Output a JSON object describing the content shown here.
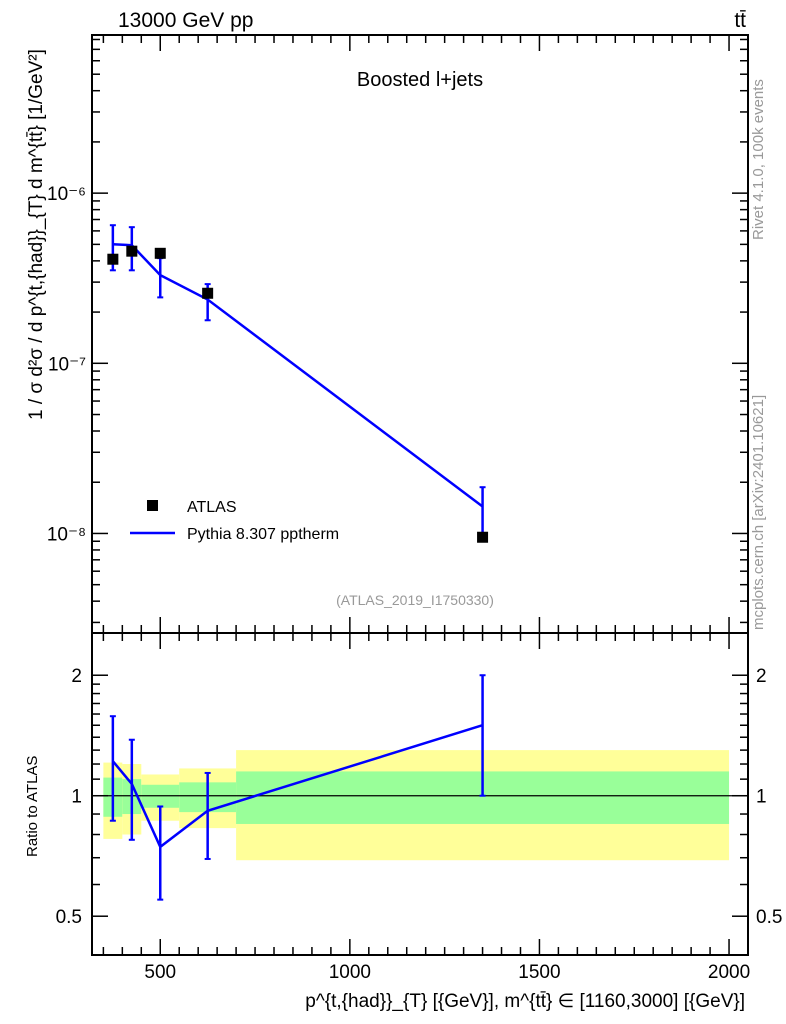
{
  "header": {
    "left": "13000 GeV pp",
    "right": "tt̄"
  },
  "side_labels": {
    "top": "Rivet 4.1.0,  100k events",
    "bottom": "mcplots.cern.ch [arXiv:2401.10621]"
  },
  "chart_data": [
    {
      "type": "scatter",
      "title": "Boosted l+jets",
      "annotation": "(ATLAS_2019_I1750330)",
      "ylabel": "1 / σ d²σ / d p^{t,{had}}_{T} d m^{tt̄} [1/GeV²]",
      "yscale": "log",
      "ylim": [
        8.5e-06,
        2.6e-09
      ],
      "xlim": [
        320,
        2050
      ],
      "yticks": [
        {
          "v": 1e-06,
          "label": "10⁻⁶"
        },
        {
          "v": 1e-07,
          "label": "10⁻⁷"
        },
        {
          "v": 1e-08,
          "label": "10⁻⁸"
        }
      ],
      "legend": {
        "placement": "bottom-left",
        "entries": [
          "ATLAS",
          "Pythia 8.307 pptherm"
        ]
      },
      "x": [
        375,
        425,
        500,
        625,
        1350
      ],
      "series": [
        {
          "name": "ATLAS",
          "values": [
            4.09e-07,
            4.56e-07,
            4.43e-07,
            2.58e-07,
            9.5e-09
          ],
          "color": "#000000"
        },
        {
          "name": "Pythia 8.307 pptherm",
          "values": [
            5.01e-07,
            4.94e-07,
            3.3e-07,
            2.37e-07,
            1.44e-08
          ],
          "err_low": [
            3.52e-07,
            3.52e-07,
            2.44e-07,
            1.79e-07,
            9.1e-09
          ],
          "err_high": [
            6.48e-07,
            6.31e-07,
            4.15e-07,
            2.92e-07,
            1.87e-08
          ],
          "color": "#0000ff"
        }
      ]
    },
    {
      "type": "line",
      "ylabel": "Ratio to ATLAS",
      "yscale": "log",
      "ylim": [
        0.4,
        2.55
      ],
      "xlim": [
        320,
        2050
      ],
      "yticks": [
        {
          "v": 2,
          "label": "2"
        },
        {
          "v": 1,
          "label": "1"
        },
        {
          "v": 0.5,
          "label": "0.5"
        }
      ],
      "xticks": [
        {
          "v": 500,
          "label": "500"
        },
        {
          "v": 1000,
          "label": "1000"
        },
        {
          "v": 1500,
          "label": "1500"
        },
        {
          "v": 2000,
          "label": "2000"
        }
      ],
      "xlabel": "p^{t,{had}}_{T} [{GeV}], m^{tt̄} ∈ [1160,3000] [{GeV}]",
      "bins": [
        350,
        400,
        450,
        550,
        700,
        2000
      ],
      "band_yellow": {
        "low": [
          0.78,
          0.8,
          0.866,
          0.83,
          0.69
        ],
        "high": [
          1.21,
          1.2,
          1.13,
          1.17,
          1.3
        ],
        "color": "#ffff99"
      },
      "band_green": {
        "low": [
          0.886,
          0.9,
          0.933,
          0.91,
          0.85
        ],
        "high": [
          1.11,
          1.1,
          1.065,
          1.08,
          1.15
        ],
        "color": "#99ff99"
      },
      "x": [
        375,
        425,
        500,
        625,
        1350
      ],
      "ratio": {
        "values": [
          1.22,
          1.07,
          0.745,
          0.917,
          1.5
        ],
        "err_low": [
          0.866,
          0.776,
          0.55,
          0.695,
          1.0
        ],
        "err_high": [
          1.58,
          1.38,
          0.94,
          1.14,
          2.0
        ],
        "color": "#0000ff"
      }
    }
  ]
}
